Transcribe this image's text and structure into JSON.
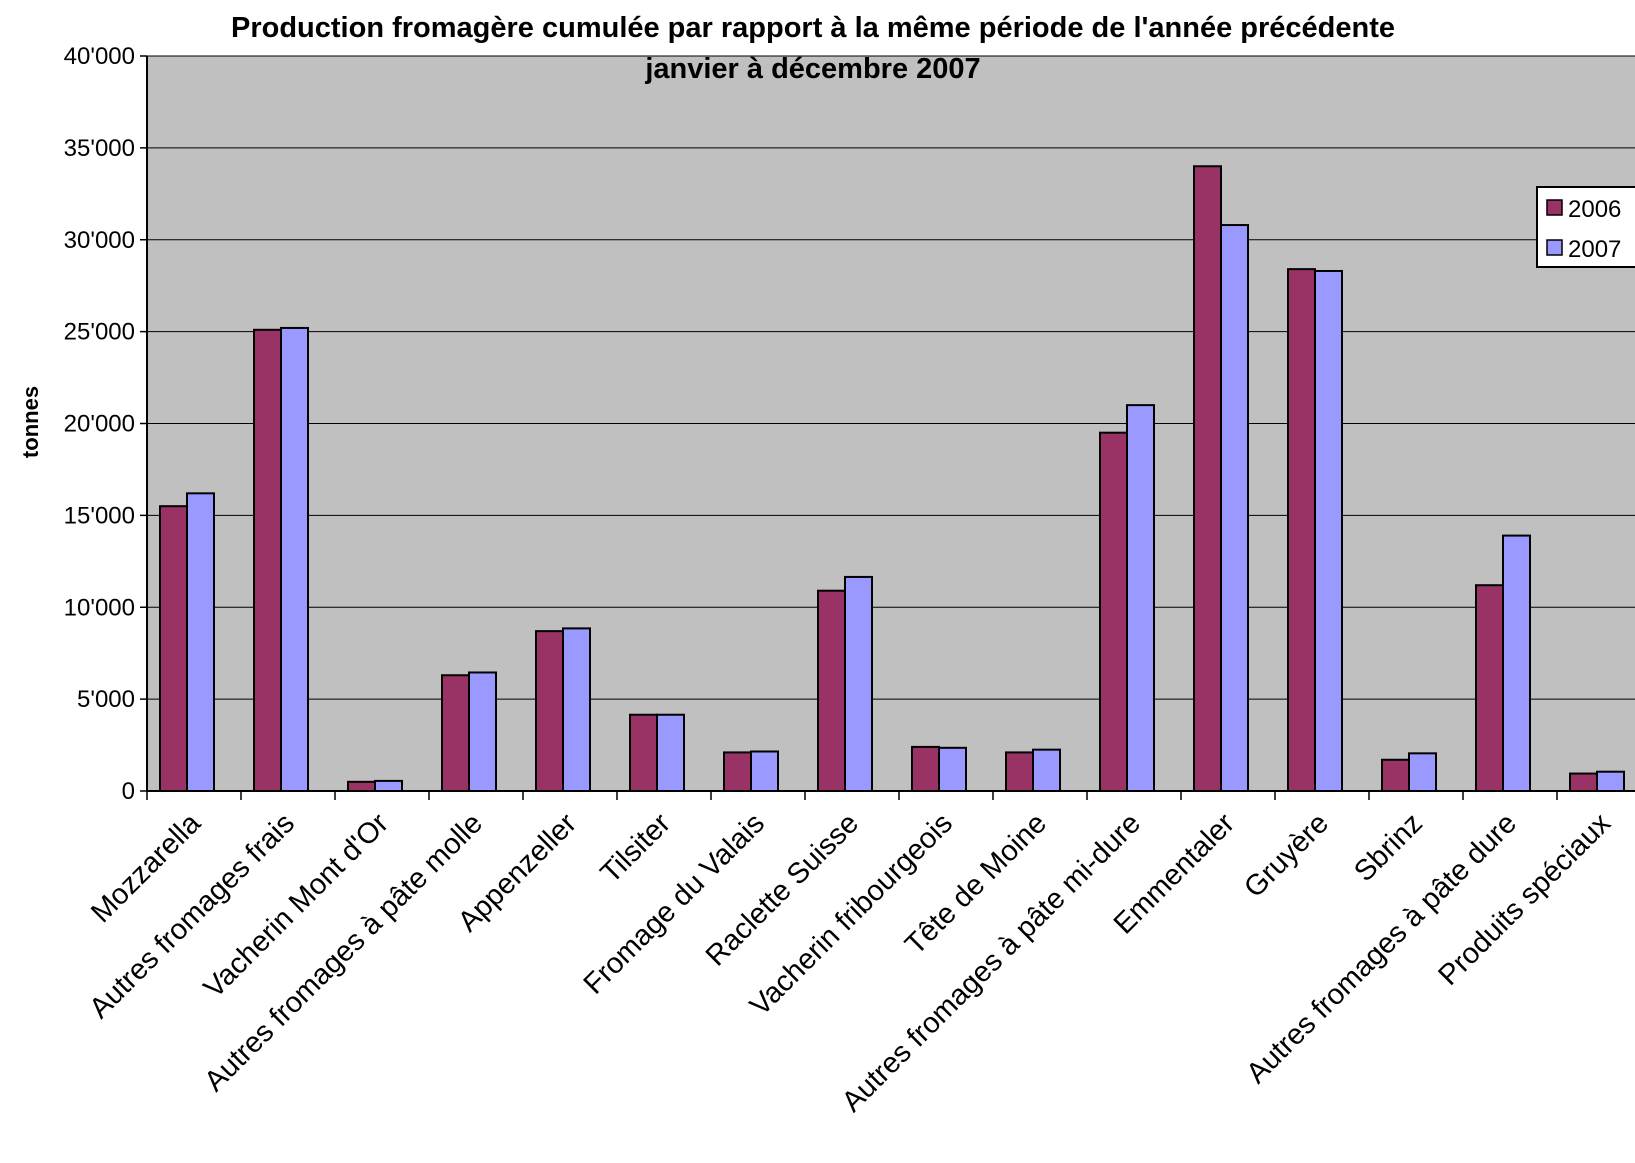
{
  "chart_data": {
    "type": "bar",
    "title": "Production fromagère cumulée par rapport à la même période de l'année précédente",
    "subtitle": "janvier à décembre 2007",
    "xlabel": "",
    "ylabel": "tonnes",
    "ylim": [
      0,
      40000
    ],
    "yticks": [
      "0",
      "5'000",
      "10'000",
      "15'000",
      "20'000",
      "25'000",
      "30'000",
      "35'000",
      "40'000"
    ],
    "grid": true,
    "legend_position": "right",
    "categories": [
      "Mozzarella",
      "Autres fromages frais",
      "Vacherin Mont d'Or",
      "Autres fromages à pâte molle",
      "Appenzeller",
      "Tilsiter",
      "Fromage du Valais",
      "Raclette Suisse",
      "Vacherin fribourgeois",
      "Tête de Moine",
      "Autres fromages à pâte mi-dure",
      "Emmentaler",
      "Gruyère",
      "Sbrinz",
      "Autres fromages à pâte dure",
      "Produits spéciaux"
    ],
    "series": [
      {
        "name": "2006",
        "color": "#993366",
        "values": [
          15500,
          25100,
          500,
          6300,
          8700,
          4150,
          2100,
          10900,
          2400,
          2100,
          19500,
          34000,
          28400,
          1700,
          11200,
          950
        ]
      },
      {
        "name": "2007",
        "color": "#9999FF",
        "values": [
          16200,
          25200,
          550,
          6450,
          8850,
          4150,
          2150,
          11650,
          2350,
          2250,
          21000,
          30800,
          28300,
          2050,
          13900,
          1050
        ]
      }
    ]
  },
  "colors": {
    "plot_background": "#C0C0C0",
    "gridline": "#000000",
    "series_2006": "#993366",
    "series_2007": "#9999FF"
  }
}
